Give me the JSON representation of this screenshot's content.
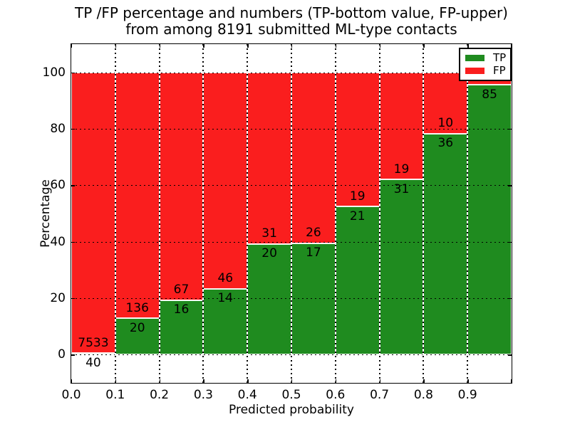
{
  "figure": {
    "title_line1": "TP /FP percentage and numbers (TP-bottom value, FP-upper)",
    "title_line2": "from among 8191 submitted ML-type contacts"
  },
  "chart_data": {
    "type": "bar",
    "stacked": true,
    "normalized": "percent",
    "title": "TP /FP percentage and numbers (TP-bottom value, FP-upper) from among 8191 submitted ML-type contacts",
    "xlabel": "Predicted probability",
    "ylabel": "Percentage",
    "xlim": [
      0.0,
      1.0
    ],
    "ylim": [
      -10,
      110
    ],
    "grid": "dotted",
    "x_tick_labels": [
      "0.0",
      "0.1",
      "0.2",
      "0.3",
      "0.4",
      "0.5",
      "0.6",
      "0.7",
      "0.8",
      "0.9"
    ],
    "y_ticks": [
      0,
      20,
      40,
      60,
      80,
      100
    ],
    "y_tick_labels": [
      "0",
      "20",
      "40",
      "60",
      "80",
      "100"
    ],
    "legend": {
      "position": "upper right",
      "entries": [
        {
          "label": "TP",
          "color": "#1f8b1f"
        },
        {
          "label": "FP",
          "color": "#fa1e1e"
        }
      ]
    },
    "bars": [
      {
        "x_range": [
          0.0,
          0.1
        ],
        "tp_count_label": "40",
        "fp_count_label": "7533",
        "tp_pct": 0.53,
        "fp_pct": 99.47
      },
      {
        "x_range": [
          0.1,
          0.2
        ],
        "tp_count_label": "20",
        "fp_count_label": "136",
        "tp_pct": 12.82,
        "fp_pct": 87.18
      },
      {
        "x_range": [
          0.2,
          0.3
        ],
        "tp_count_label": "16",
        "fp_count_label": "67",
        "tp_pct": 19.28,
        "fp_pct": 80.72
      },
      {
        "x_range": [
          0.3,
          0.4
        ],
        "tp_count_label": "14",
        "fp_count_label": "46",
        "tp_pct": 23.33,
        "fp_pct": 76.67
      },
      {
        "x_range": [
          0.4,
          0.5
        ],
        "tp_count_label": "20",
        "fp_count_label": "31",
        "tp_pct": 39.22,
        "fp_pct": 60.78
      },
      {
        "x_range": [
          0.5,
          0.6
        ],
        "tp_count_label": "17",
        "fp_count_label": "26",
        "tp_pct": 39.53,
        "fp_pct": 60.47
      },
      {
        "x_range": [
          0.6,
          0.7
        ],
        "tp_count_label": "21",
        "fp_count_label": "19",
        "tp_pct": 52.5,
        "fp_pct": 47.5
      },
      {
        "x_range": [
          0.7,
          0.8
        ],
        "tp_count_label": "31",
        "fp_count_label": "19",
        "tp_pct": 62.0,
        "fp_pct": 38.0
      },
      {
        "x_range": [
          0.8,
          0.9
        ],
        "tp_count_label": "36",
        "fp_count_label": "10",
        "tp_pct": 78.26,
        "fp_pct": 21.74
      },
      {
        "x_range": [
          0.9,
          1.0
        ],
        "tp_count_label": "85",
        "fp_count_label": "",
        "tp_pct": 95.51,
        "fp_pct": 4.49
      }
    ]
  },
  "colors": {
    "tp_green": "#1f8b1f",
    "fp_red": "#fa1e1e",
    "background": "#ffffff",
    "text": "#000000"
  }
}
